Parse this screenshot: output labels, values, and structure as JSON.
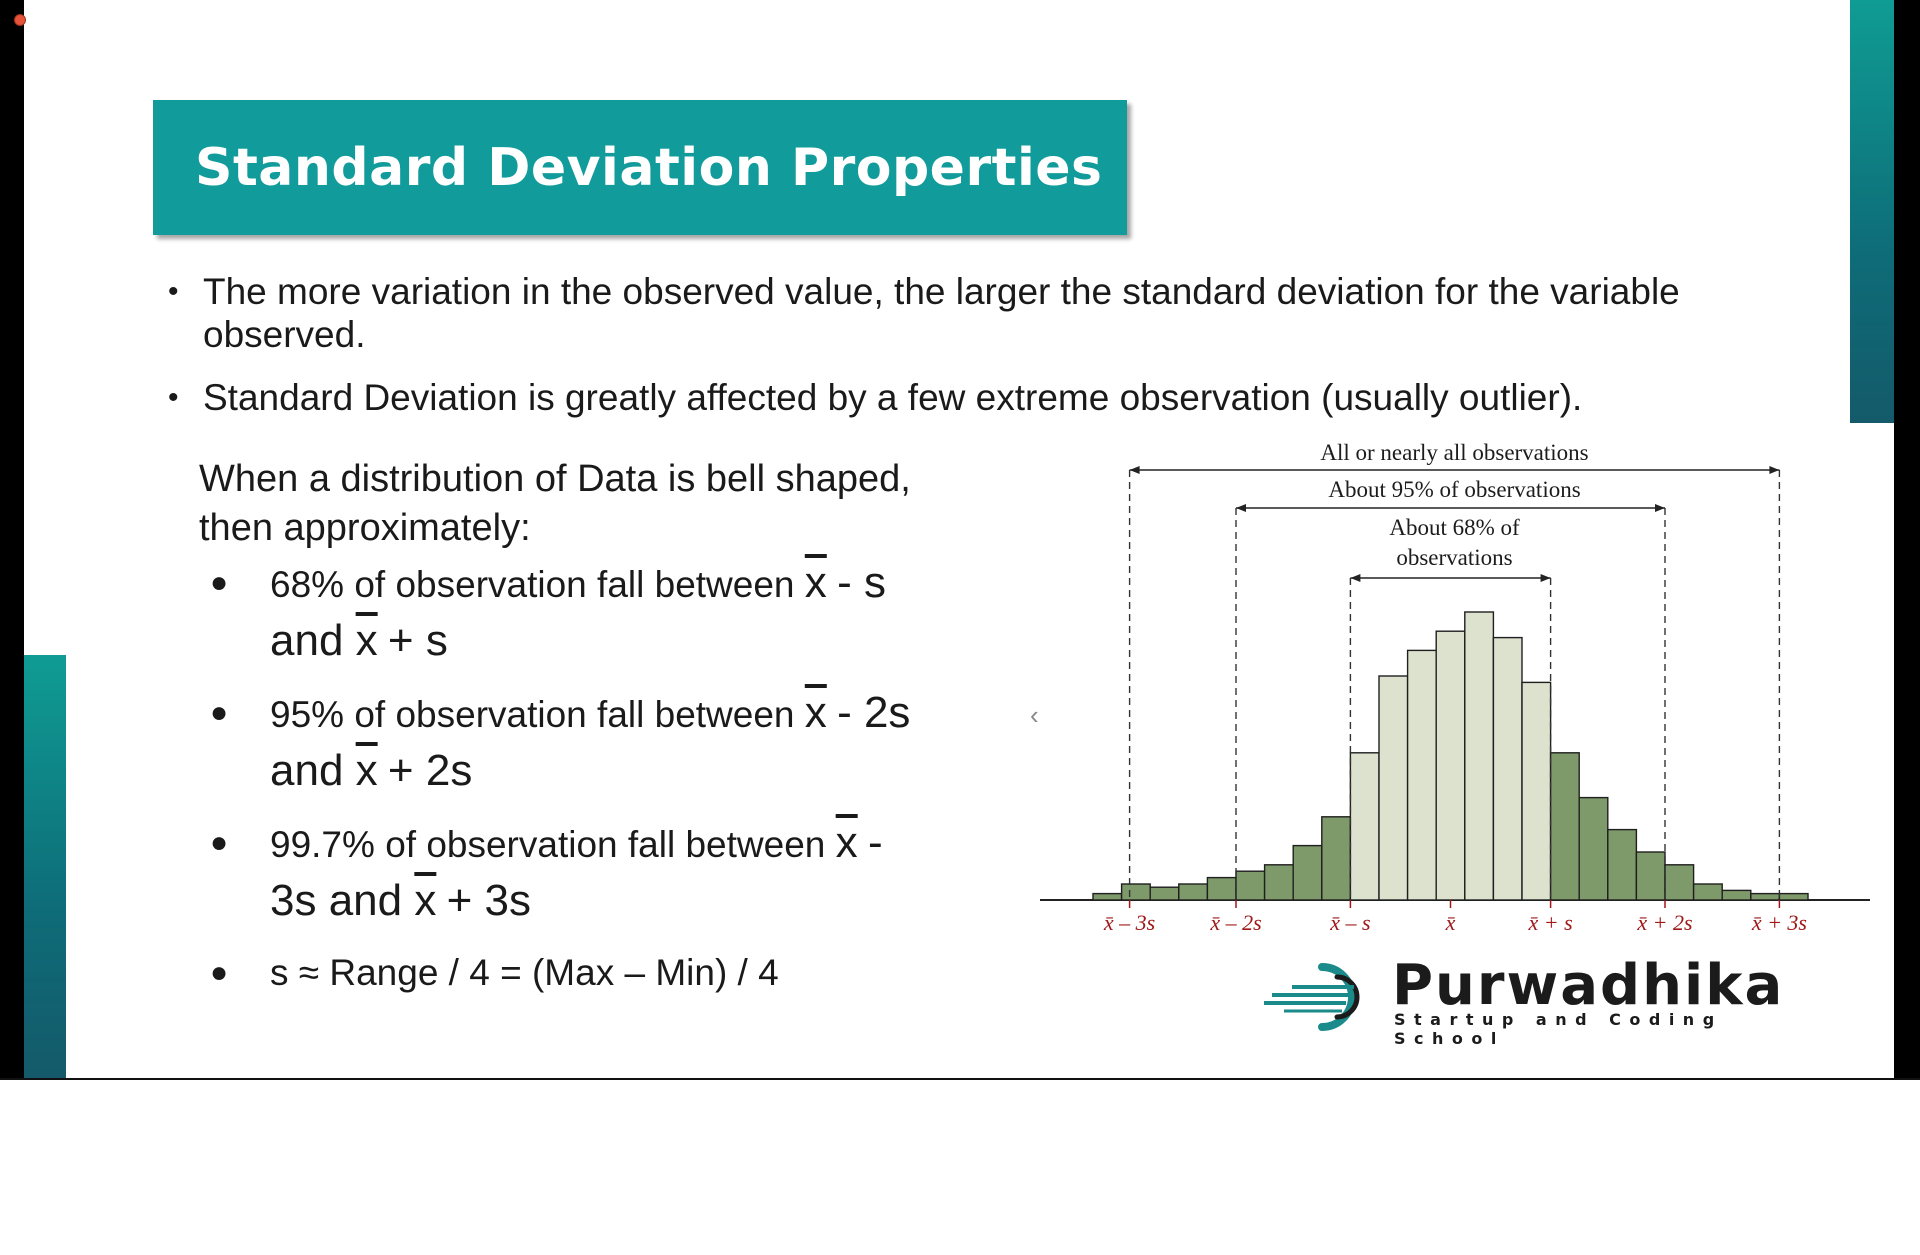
{
  "slide": {
    "title": "Standard Deviation Properties",
    "bullets": [
      "The more variation in the observed value, the larger the standard deviation for the variable observed.",
      "Standard Deviation is greatly affected by a few extreme observation (usually outlier)."
    ],
    "intro_line1": "When a distribution of Data is bell shaped,",
    "intro_line2": "then approximately:",
    "rules": [
      {
        "pre": "68% of observation fall between ",
        "lower": "- s",
        "and": "and ",
        "upper": "+ s"
      },
      {
        "pre": "95% of observation fall between ",
        "lower": "- 2s",
        "and": "and ",
        "upper": "+ 2s"
      },
      {
        "pre": "99.7% of observation fall between ",
        "lower": "-",
        "and": "3s and ",
        "upper": "+ 3s"
      }
    ],
    "xbar_symbol": "x",
    "approx_rule": "s ≈ Range / 4 = (Max – Min) / 4",
    "nav_chevron": "‹"
  },
  "chart_data": {
    "type": "bar",
    "title": "",
    "annotations": [
      "All or nearly all observations",
      "About 95% of observations",
      "About 68% of",
      "observations"
    ],
    "tick_labels": [
      "x̄ – 3s",
      "x̄ – 2s",
      "x̄ – s",
      "x̄",
      "x̄ + s",
      "x̄ + 2s",
      "x̄ + 3s"
    ],
    "values": [
      1,
      2.5,
      2,
      2.5,
      3.5,
      4.5,
      5.5,
      8.5,
      13,
      23,
      35,
      39,
      42,
      45,
      41,
      34,
      23,
      16,
      11,
      7.5,
      5.5,
      2.5,
      1.5,
      1,
      1
    ],
    "colors": {
      "outer": "#7e9a6a",
      "inner": "#dde2cf",
      "tick": "#a01818",
      "axis": "#222222"
    },
    "ylim": [
      0,
      50
    ],
    "grid": false
  },
  "logo": {
    "name": "Purwadhika",
    "tagline": "Startup and Coding School",
    "icon": "purwadhika-swoosh-icon",
    "colors": {
      "ring": "#1a8a8a",
      "text": "#1b1b1b"
    }
  }
}
